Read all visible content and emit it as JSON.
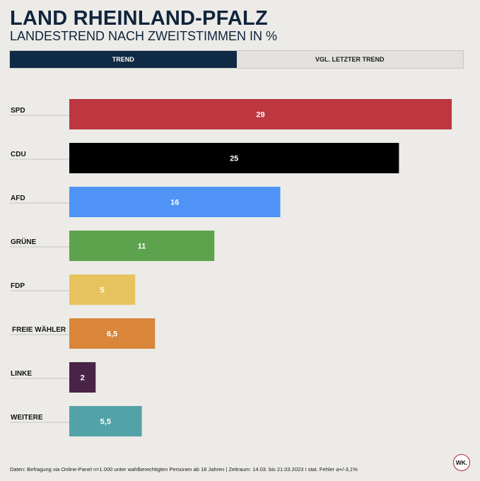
{
  "header": {
    "title": "LAND RHEINLAND-PFALZ",
    "subtitle": "LANDESTREND NACH ZWEITSTIMMEN IN %"
  },
  "tabs": [
    {
      "label": "TREND",
      "active": true
    },
    {
      "label": "VGL. LETZTER TREND",
      "active": false
    }
  ],
  "chart_data": {
    "type": "bar",
    "orientation": "horizontal",
    "categories": [
      "SPD",
      "CDU",
      "AFD",
      "GRÜNE",
      "FDP",
      "FREIE WÄHLER",
      "LINKE",
      "WEITERE"
    ],
    "values": [
      29,
      25,
      16,
      11,
      5,
      6.5,
      2,
      5.5
    ],
    "value_labels": [
      "29",
      "25",
      "16",
      "11",
      "5",
      "6,5",
      "2",
      "5,5"
    ],
    "colors": [
      "#bd3640",
      "#000000",
      "#4e93f5",
      "#5da24c",
      "#e8c35d",
      "#d9853a",
      "#4a2348",
      "#52a3a8"
    ],
    "xlim": [
      0,
      29
    ],
    "grid": false,
    "legend": "none"
  },
  "footer": {
    "text": "Daten: Befragung via Online-Panel n=1.000 unter wahlberechtigten Personen ab 18 Jahren | Zeitraum: 14.03. bis 21.03.2023 I stat. Fehler ⌀+/-3,1%"
  },
  "logo": {
    "text": "WK."
  }
}
